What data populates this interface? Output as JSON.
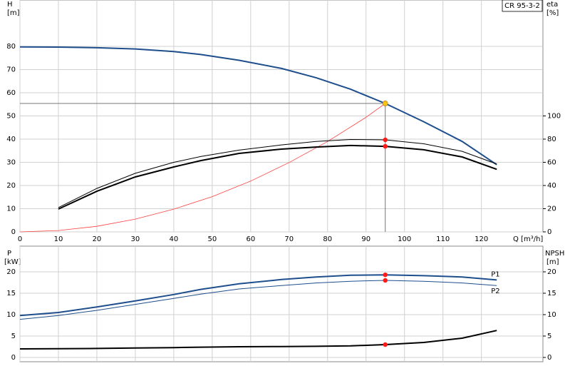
{
  "chart_data": [
    {
      "type": "line",
      "title": "CR 95-3-2",
      "ylabel": "H",
      "yunit": "[m]",
      "y2label": "eta",
      "y2unit": "[%]",
      "xlabel": "Q [m³/h]",
      "xlim": [
        0,
        136
      ],
      "xticks": [
        0,
        10,
        20,
        30,
        40,
        50,
        60,
        70,
        80,
        90,
        100,
        110,
        120
      ],
      "ylim": [
        0,
        100
      ],
      "yticks": [
        0,
        10,
        20,
        30,
        40,
        50,
        60,
        70,
        80
      ],
      "y2lim": [
        0,
        200
      ],
      "y2ticks": [
        0,
        20,
        40,
        60,
        80,
        100
      ],
      "grid": true,
      "marker_at": 95,
      "x": [
        0,
        10,
        20,
        30,
        40,
        47,
        57,
        68,
        77,
        86,
        95,
        105,
        115,
        124
      ],
      "duty_point": {
        "x": 95,
        "y": 55.4,
        "color": "#f5c518"
      },
      "series": [
        {
          "color": "#1f4e8c",
          "width": 2,
          "values": [
            79.8,
            79.7,
            79.4,
            78.9,
            77.8,
            76.5,
            74,
            70.5,
            66.5,
            61.5,
            55.4,
            47.5,
            39,
            29
          ]
        },
        {
          "color": "#ff4040",
          "width": 0.8,
          "x": [
            0,
            10,
            20,
            30,
            40,
            50,
            60,
            70,
            80,
            90,
            95
          ],
          "values": [
            0,
            0.6,
            2.4,
            5.5,
            9.8,
            15.2,
            21.9,
            29.9,
            39,
            49.4,
            55.4
          ]
        },
        {
          "color": "#000000",
          "width": 1,
          "axis": "y2",
          "values": [
            null,
            21,
            37.5,
            50.5,
            60,
            65,
            70.5,
            75,
            78,
            79.7,
            79.4,
            76,
            69.5,
            58.5
          ]
        },
        {
          "color": "#000000",
          "width": 2,
          "axis": "y2",
          "values": [
            null,
            19.7,
            35,
            47.4,
            56,
            61.5,
            67.7,
            71.4,
            73.2,
            74.5,
            73.8,
            70.8,
            64.6,
            54
          ]
        }
      ]
    },
    {
      "type": "line",
      "ylabel": "P",
      "yunit": "[kW]",
      "y2label": "NPSH",
      "y2unit": "[m]",
      "ylim": [
        -1,
        26
      ],
      "yticks": [
        0,
        5,
        10,
        15,
        20
      ],
      "y2lim": [
        -1,
        26
      ],
      "y2ticks": [
        0,
        5,
        10,
        15,
        20
      ],
      "grid": true,
      "marker_at": 95,
      "x": [
        0,
        10,
        20,
        30,
        40,
        47,
        57,
        68,
        77,
        86,
        95,
        105,
        115,
        124
      ],
      "series": [
        {
          "name": "P1",
          "color": "#1f4e8c",
          "width": 2,
          "values": [
            9.8,
            10.5,
            11.8,
            13.2,
            14.7,
            15.9,
            17.2,
            18.2,
            18.8,
            19.2,
            19.3,
            19.1,
            18.8,
            18.1
          ]
        },
        {
          "name": "P2",
          "color": "#1f4e8c",
          "width": 1,
          "values": [
            8.9,
            9.8,
            11,
            12.4,
            13.8,
            14.8,
            16,
            16.8,
            17.4,
            17.8,
            18,
            17.8,
            17.4,
            16.8
          ]
        },
        {
          "color": "#000000",
          "width": 2,
          "axis": "y2",
          "values": [
            2,
            2.05,
            2.1,
            2.2,
            2.3,
            2.4,
            2.5,
            2.55,
            2.6,
            2.7,
            3,
            3.5,
            4.5,
            6.3
          ]
        }
      ]
    }
  ]
}
